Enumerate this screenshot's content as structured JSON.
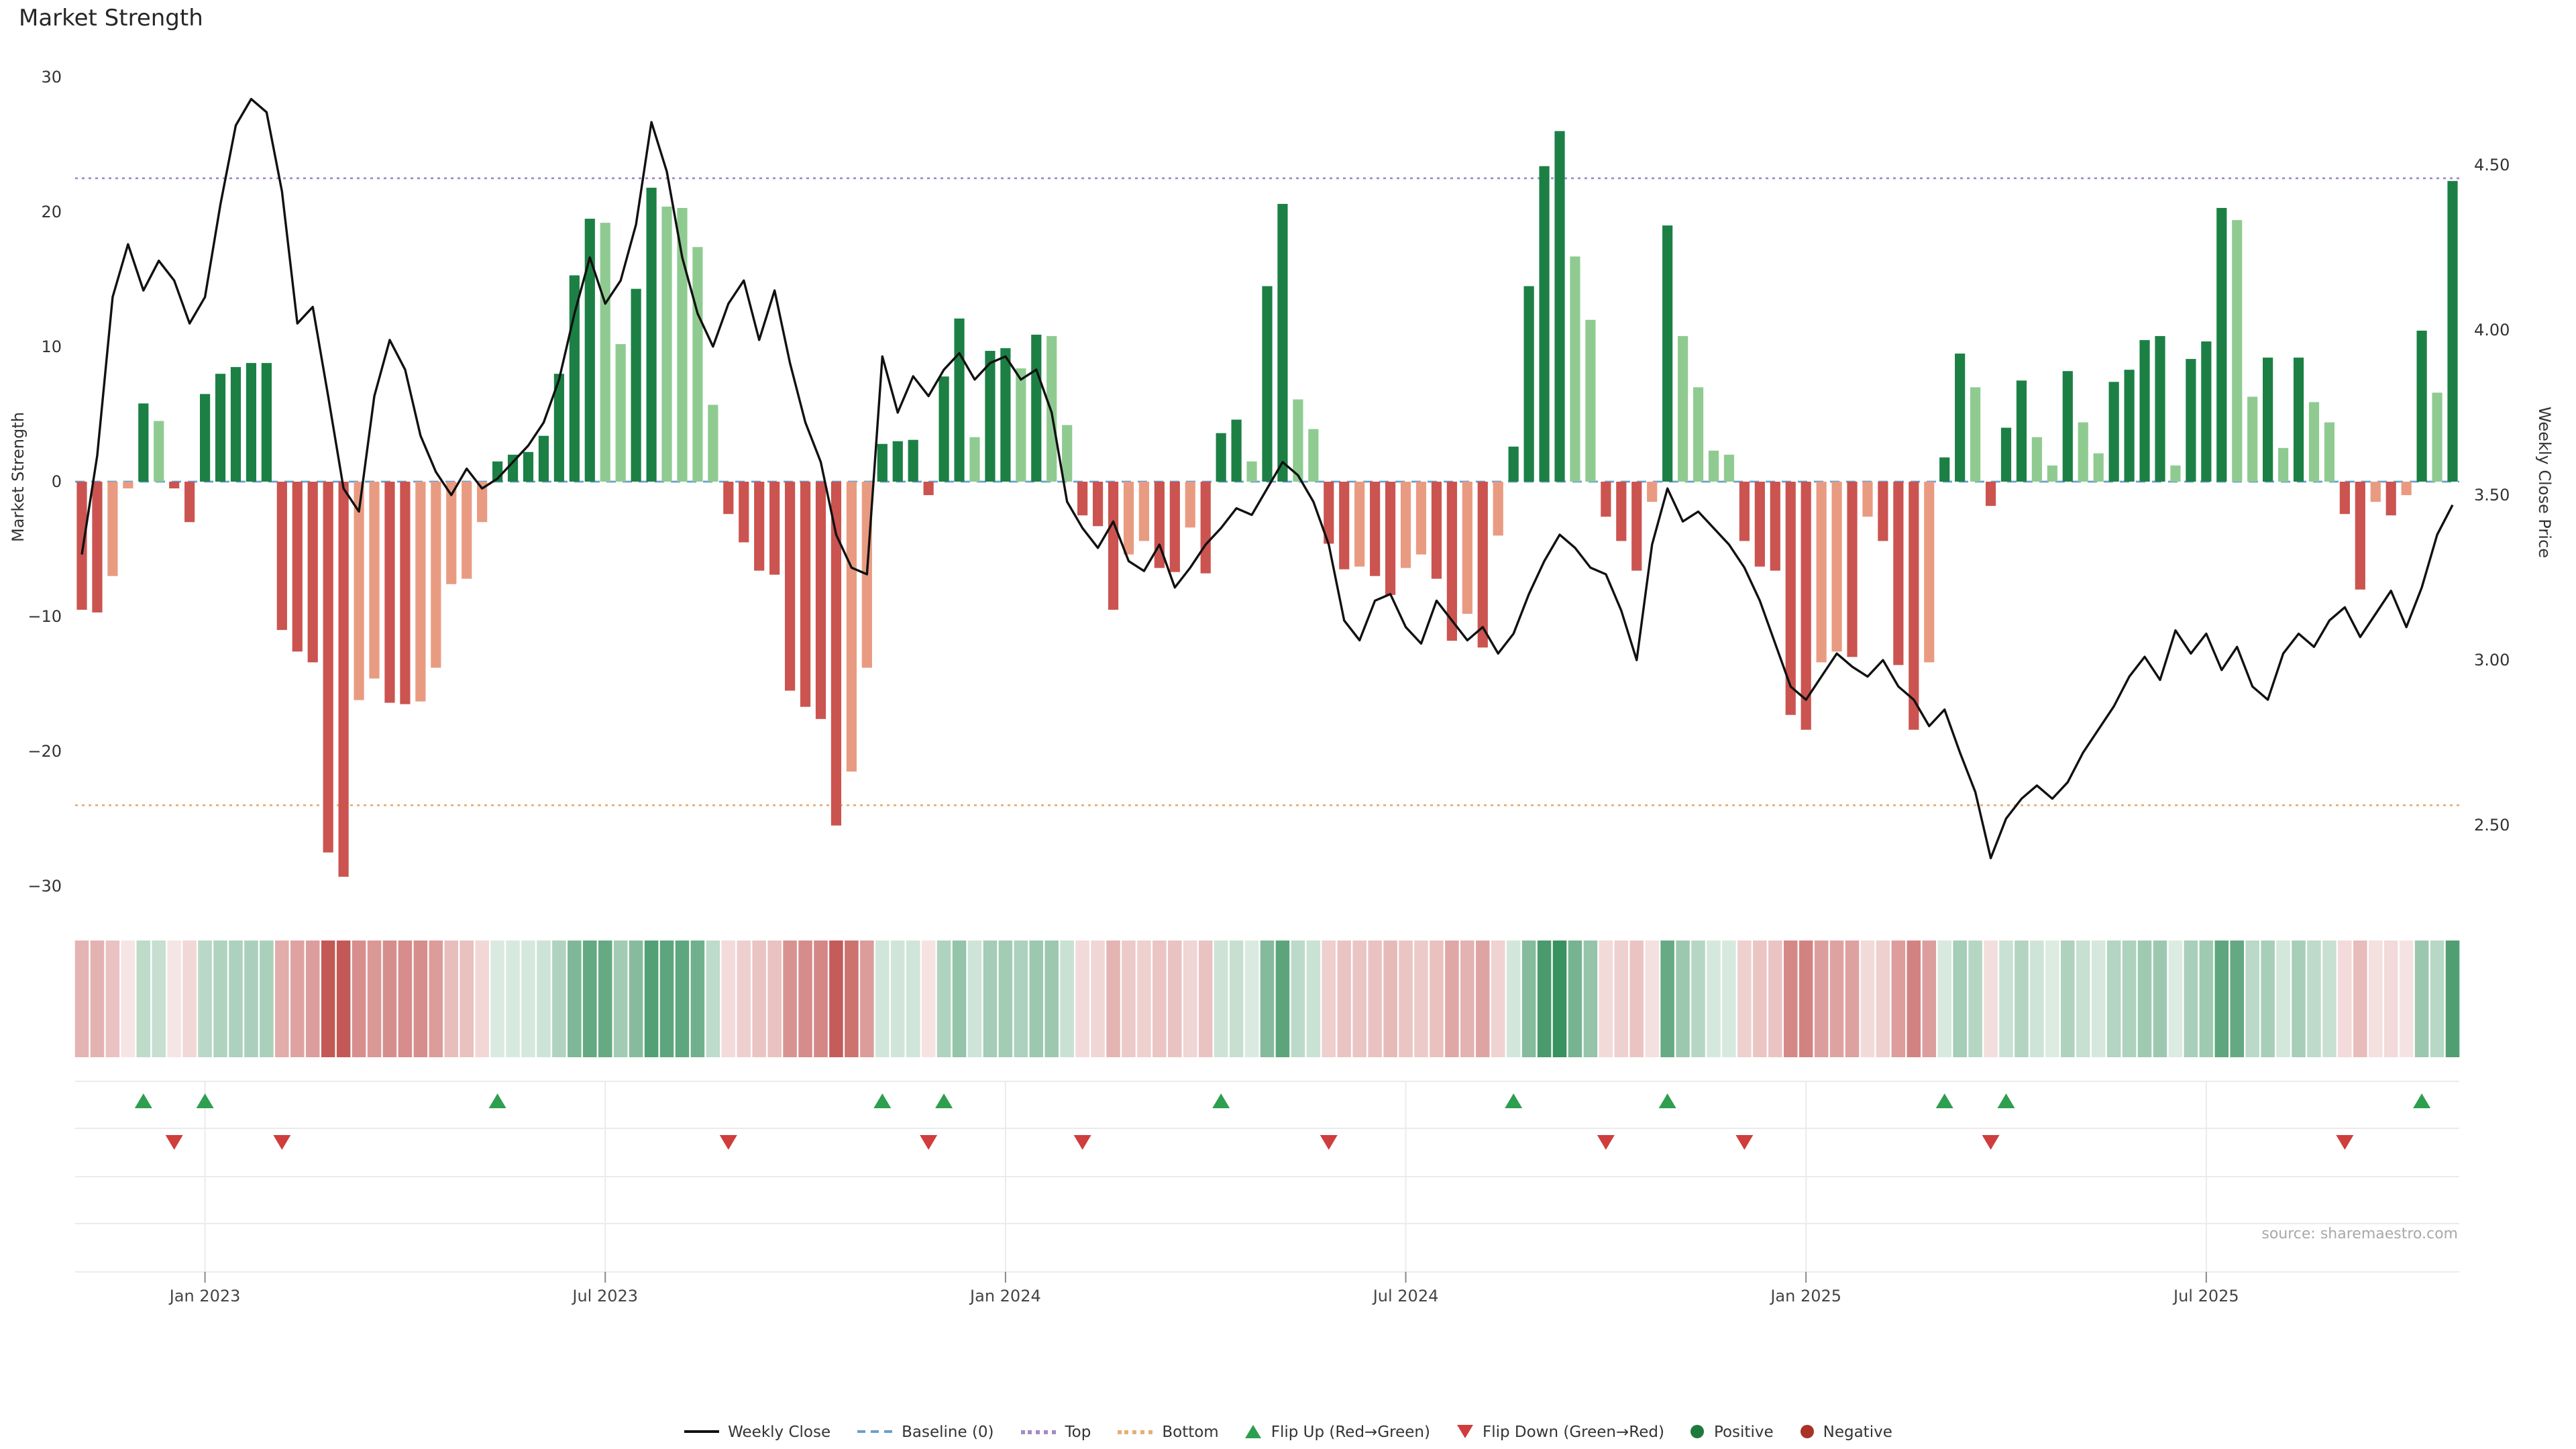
{
  "title": "Market Strength",
  "source": "source: sharemaestro.com",
  "left_axis": {
    "label": "Market Strength",
    "ticks": [
      30,
      20,
      10,
      0,
      -10,
      -20,
      -30
    ]
  },
  "right_axis": {
    "label": "Weekly Close Price",
    "ticks": [
      "4.50",
      "4.00",
      "3.50",
      "3.00",
      "2.50"
    ]
  },
  "x_axis": {
    "ticks": [
      {
        "label": "Jan 2023",
        "week": 8
      },
      {
        "label": "Jul 2023",
        "week": 34
      },
      {
        "label": "Jan 2024",
        "week": 60
      },
      {
        "label": "Jul 2024",
        "week": 86
      },
      {
        "label": "Jan 2025",
        "week": 112
      },
      {
        "label": "Jul 2025",
        "week": 138
      }
    ]
  },
  "colors": {
    "line": "#111111",
    "baseline": "#6a9fcb",
    "top_line": "#a08cc8",
    "bottom_line": "#e3b077",
    "green_dark": "#1c8045",
    "green_light": "#8fcb91",
    "red_dark": "#cb5450",
    "red_light": "#e99b82",
    "heat_green": "#2e8b57",
    "heat_red": "#c0504d",
    "flip_up": "#2e9e4f",
    "flip_down": "#cf3d3d",
    "grid": "#ebebeb"
  },
  "legend": [
    {
      "label": "Weekly Close",
      "glyph": "line",
      "color": "#111111"
    },
    {
      "label": "Baseline (0)",
      "glyph": "dashed-line",
      "color": "#6a9fcb"
    },
    {
      "label": "Top",
      "glyph": "dotted-line",
      "color": "#a08cc8"
    },
    {
      "label": "Bottom",
      "glyph": "dotted-line",
      "color": "#e3b077"
    },
    {
      "label": "Flip Up (Red→Green)",
      "glyph": "triangle-up",
      "color": "#2e9e4f"
    },
    {
      "label": "Flip Down (Green→Red)",
      "glyph": "triangle-down",
      "color": "#cf3d3d"
    },
    {
      "label": "Positive",
      "glyph": "circle",
      "color": "#1e7a3c"
    },
    {
      "label": "Negative",
      "glyph": "circle",
      "color": "#a93226"
    }
  ],
  "chart_data": {
    "type": "bar",
    "subtype": "bar-with-price-line-heatmap-and-flip-markers",
    "title": "Market Strength",
    "interval": "weekly",
    "start_date": "2022-11-07",
    "end_date": "2025-10-20",
    "n_weeks": 155,
    "ylabel_left": "Market Strength",
    "ylabel_right": "Weekly Close Price",
    "ylim_strength": [
      -30,
      30
    ],
    "ylim_price": [
      2.35,
      4.75
    ],
    "baseline": 0,
    "top_level": 22.5,
    "bottom_level": -24,
    "grid": false,
    "legend_position": "bottom-center",
    "strength": [
      -9.5,
      -9.7,
      -7.0,
      -0.5,
      5.8,
      4.5,
      -0.5,
      -3.0,
      6.5,
      8.0,
      8.5,
      8.8,
      8.8,
      -11.0,
      -12.6,
      -13.4,
      -27.5,
      -29.3,
      -16.2,
      -14.6,
      -16.4,
      -16.5,
      -16.3,
      -13.8,
      -7.6,
      -7.2,
      -3.0,
      1.5,
      2.0,
      2.2,
      3.4,
      8.0,
      15.3,
      19.5,
      19.2,
      10.2,
      14.3,
      21.8,
      20.4,
      20.3,
      17.4,
      5.7,
      -2.4,
      -4.5,
      -6.6,
      -6.9,
      -15.5,
      -16.7,
      -17.6,
      -25.5,
      -21.5,
      -13.8,
      2.8,
      3.0,
      3.1,
      -1.0,
      7.8,
      12.1,
      3.3,
      9.7,
      9.9,
      8.4,
      10.9,
      10.8,
      4.2,
      -2.5,
      -3.3,
      -9.5,
      -5.4,
      -4.4,
      -6.4,
      -6.7,
      -3.4,
      -6.8,
      3.6,
      4.6,
      1.5,
      14.5,
      20.6,
      6.1,
      3.9,
      -4.6,
      -6.5,
      -6.3,
      -7.0,
      -8.4,
      -6.4,
      -5.4,
      -7.2,
      -11.8,
      -9.8,
      -12.3,
      -4.0,
      2.6,
      14.5,
      23.4,
      26.0,
      16.7,
      12.0,
      -2.6,
      -4.4,
      -6.6,
      -1.5,
      19.0,
      10.8,
      7.0,
      2.3,
      2.0,
      -4.4,
      -6.3,
      -6.6,
      -17.3,
      -18.4,
      -13.4,
      -12.6,
      -13.0,
      -2.6,
      -4.4,
      -13.6,
      -18.4,
      -13.4,
      1.8,
      9.5,
      7.0,
      -1.8,
      4.0,
      7.5,
      3.3,
      1.2,
      8.2,
      4.4,
      2.1,
      7.4,
      8.3,
      10.5,
      10.8,
      1.2,
      9.1,
      10.4,
      20.3,
      19.4,
      6.3,
      9.2,
      2.5,
      9.2,
      5.9,
      4.4,
      -2.4,
      -8.0,
      -1.5,
      -2.5,
      -1.0,
      11.2,
      6.6,
      22.3
    ],
    "close": [
      3.32,
      3.62,
      4.1,
      4.26,
      4.12,
      4.21,
      4.15,
      4.02,
      4.1,
      4.38,
      4.62,
      4.7,
      4.66,
      4.42,
      4.02,
      4.07,
      3.8,
      3.52,
      3.45,
      3.8,
      3.97,
      3.88,
      3.68,
      3.57,
      3.5,
      3.58,
      3.52,
      3.55,
      3.6,
      3.65,
      3.72,
      3.85,
      4.05,
      4.22,
      4.08,
      4.15,
      4.32,
      4.63,
      4.48,
      4.22,
      4.05,
      3.95,
      4.08,
      4.15,
      3.97,
      4.12,
      3.9,
      3.72,
      3.6,
      3.38,
      3.28,
      3.26,
      3.92,
      3.75,
      3.86,
      3.8,
      3.88,
      3.93,
      3.85,
      3.9,
      3.92,
      3.85,
      3.88,
      3.75,
      3.48,
      3.4,
      3.34,
      3.42,
      3.3,
      3.27,
      3.35,
      3.22,
      3.28,
      3.35,
      3.4,
      3.46,
      3.44,
      3.52,
      3.6,
      3.56,
      3.48,
      3.35,
      3.12,
      3.06,
      3.18,
      3.2,
      3.1,
      3.05,
      3.18,
      3.12,
      3.06,
      3.1,
      3.02,
      3.08,
      3.2,
      3.3,
      3.38,
      3.34,
      3.28,
      3.26,
      3.15,
      3.0,
      3.35,
      3.52,
      3.42,
      3.45,
      3.4,
      3.35,
      3.28,
      3.18,
      3.05,
      2.92,
      2.88,
      2.95,
      3.02,
      2.98,
      2.95,
      3.0,
      2.92,
      2.88,
      2.8,
      2.85,
      2.72,
      2.6,
      2.4,
      2.52,
      2.58,
      2.62,
      2.58,
      2.63,
      2.72,
      2.79,
      2.86,
      2.95,
      3.01,
      2.94,
      3.09,
      3.02,
      3.08,
      2.97,
      3.04,
      2.92,
      2.88,
      3.02,
      3.08,
      3.04,
      3.12,
      3.16,
      3.07,
      3.14,
      3.21,
      3.1,
      3.22,
      3.38,
      3.47
    ],
    "flip_up_weeks": [
      4,
      8,
      27,
      52,
      56,
      74,
      93,
      103,
      121,
      125,
      152
    ],
    "flip_down_weeks": [
      6,
      13,
      42,
      55,
      65,
      81,
      99,
      108,
      124,
      147
    ]
  }
}
